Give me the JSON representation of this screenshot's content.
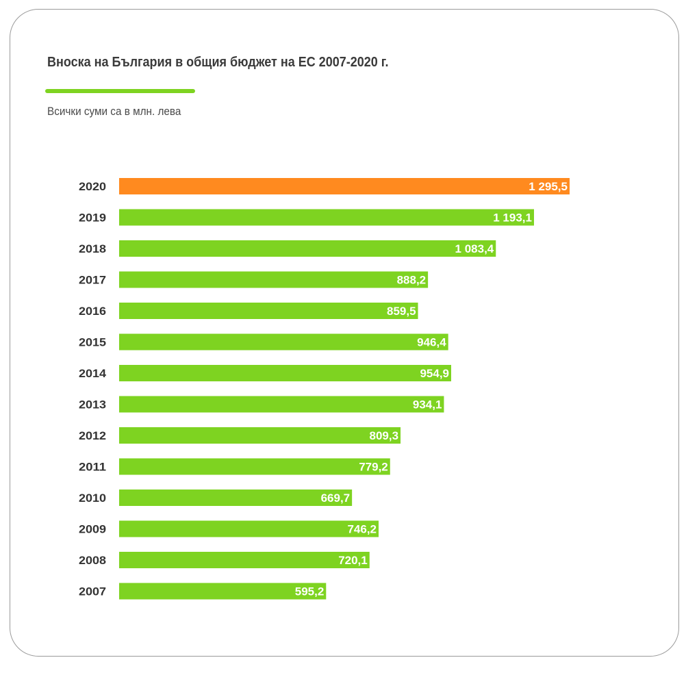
{
  "header": {
    "title": "Вноска на България в общия бюджет на ЕС 2007-2020 г.",
    "subtitle": "Всички суми са в млн. лева"
  },
  "colors": {
    "accent": "#7ed321",
    "bar": "#7ed321",
    "highlight": "#ff8a1f"
  },
  "chart_data": {
    "type": "bar",
    "orientation": "horizontal",
    "title": "Вноска на България в общия бюджет на ЕС 2007-2020 г.",
    "subtitle": "Всички суми са в млн. лева",
    "categories": [
      "2020",
      "2019",
      "2018",
      "2017",
      "2016",
      "2015",
      "2014",
      "2013",
      "2012",
      "2011",
      "2010",
      "2009",
      "2008",
      "2007"
    ],
    "values": [
      1295.5,
      1193.1,
      1083.4,
      888.2,
      859.5,
      946.4,
      954.9,
      934.1,
      809.3,
      779.2,
      669.7,
      746.2,
      720.1,
      595.2
    ],
    "value_labels": [
      "1 295,5",
      "1 193,1",
      "1 083,4",
      "888,2",
      "859,5",
      "946,4",
      "954,9",
      "934,1",
      "809,3",
      "779,2",
      "669,7",
      "746,2",
      "720,1",
      "595,2"
    ],
    "highlight_category": "2020",
    "grid": false,
    "legend": "none"
  }
}
